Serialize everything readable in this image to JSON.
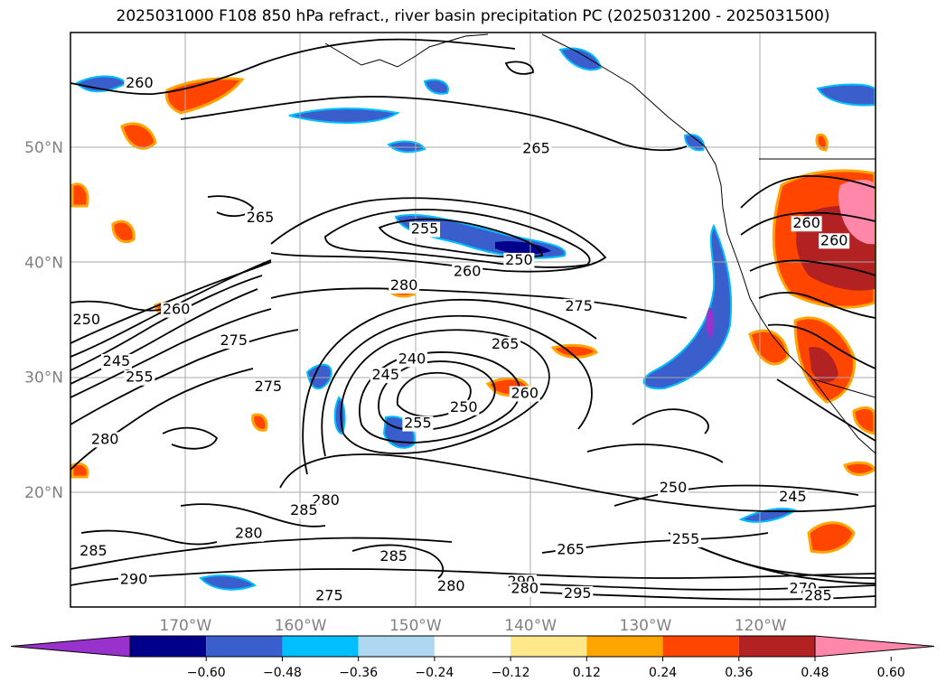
{
  "title": "2025031000 F108 850 hPa refract., river basin precipitation PC (2025031200 - 2025031500)",
  "map": {
    "lon_range": [
      -180,
      -110
    ],
    "lat_range": [
      10,
      60
    ],
    "grid_lines": true,
    "lat_ticks": [
      {
        "lat": 50,
        "label": "50°N"
      },
      {
        "lat": 40,
        "label": "40°N"
      },
      {
        "lat": 30,
        "label": "30°N"
      },
      {
        "lat": 20,
        "label": "20°N"
      }
    ],
    "lon_ticks": [
      {
        "lon": -170,
        "label": "170°W"
      },
      {
        "lon": -160,
        "label": "160°W"
      },
      {
        "lon": -150,
        "label": "150°W"
      },
      {
        "lon": -140,
        "label": "140°W"
      },
      {
        "lon": -130,
        "label": "130°W"
      },
      {
        "lon": -120,
        "label": "120°W"
      }
    ],
    "contour_labels": [
      {
        "text": "260",
        "lon": -174.0,
        "lat": 55.2
      },
      {
        "text": "265",
        "lon": -139.5,
        "lat": 49.5
      },
      {
        "text": "265",
        "lon": -163.5,
        "lat": 43.5
      },
      {
        "text": "255",
        "lon": -149.2,
        "lat": 42.5
      },
      {
        "text": "250",
        "lon": -141.0,
        "lat": 39.8
      },
      {
        "text": "260",
        "lon": -145.5,
        "lat": 38.8
      },
      {
        "text": "280",
        "lon": -151.0,
        "lat": 37.6
      },
      {
        "text": "260",
        "lon": -170.8,
        "lat": 35.5
      },
      {
        "text": "250",
        "lon": -178.6,
        "lat": 34.6
      },
      {
        "text": "275",
        "lon": -165.8,
        "lat": 32.8
      },
      {
        "text": "275",
        "lon": -135.8,
        "lat": 35.8
      },
      {
        "text": "265",
        "lon": -142.2,
        "lat": 32.5
      },
      {
        "text": "240",
        "lon": -150.3,
        "lat": 31.2
      },
      {
        "text": "245",
        "lon": -152.6,
        "lat": 29.8
      },
      {
        "text": "245",
        "lon": -176.0,
        "lat": 31.0
      },
      {
        "text": "255",
        "lon": -174.0,
        "lat": 29.6
      },
      {
        "text": "275",
        "lon": -162.8,
        "lat": 28.8
      },
      {
        "text": "260",
        "lon": -140.5,
        "lat": 28.2
      },
      {
        "text": "250",
        "lon": -145.8,
        "lat": 27.0
      },
      {
        "text": "255",
        "lon": -149.8,
        "lat": 25.6
      },
      {
        "text": "280",
        "lon": -177.0,
        "lat": 24.2
      },
      {
        "text": "250",
        "lon": -127.6,
        "lat": 20.0
      },
      {
        "text": "245",
        "lon": -117.2,
        "lat": 19.2
      },
      {
        "text": "280",
        "lon": -157.8,
        "lat": 18.9
      },
      {
        "text": "285",
        "lon": -159.7,
        "lat": 18.0
      },
      {
        "text": "280",
        "lon": -164.5,
        "lat": 16.0
      },
      {
        "text": "285",
        "lon": -178.0,
        "lat": 14.5
      },
      {
        "text": "265",
        "lon": -136.5,
        "lat": 14.6
      },
      {
        "text": "255",
        "lon": -126.5,
        "lat": 15.5
      },
      {
        "text": "285",
        "lon": -151.9,
        "lat": 14.0
      },
      {
        "text": "290",
        "lon": -174.5,
        "lat": 12.0
      },
      {
        "text": "290",
        "lon": -140.8,
        "lat": 11.8
      },
      {
        "text": "280",
        "lon": -146.9,
        "lat": 11.4
      },
      {
        "text": "280",
        "lon": -140.5,
        "lat": 11.2
      },
      {
        "text": "295",
        "lon": -135.9,
        "lat": 10.8
      },
      {
        "text": "270",
        "lon": -116.3,
        "lat": 11.2
      },
      {
        "text": "285",
        "lon": -115.0,
        "lat": 10.6
      },
      {
        "text": "275",
        "lon": -157.5,
        "lat": 10.6
      },
      {
        "text": "260",
        "lon": -116.0,
        "lat": 43.0
      },
      {
        "text": "260",
        "lon": -113.6,
        "lat": 41.5
      }
    ]
  },
  "colorbar": {
    "ticks": [
      "−0.60",
      "−0.48",
      "−0.36",
      "−0.24",
      "−0.12",
      "0.12",
      "0.24",
      "0.36",
      "0.48",
      "0.60"
    ],
    "colors": [
      "#9932cc",
      "#00008b",
      "#3a5fcd",
      "#00bfff",
      "#add8f0",
      "#ffffff",
      "#ffe88a",
      "#ffa500",
      "#ff4500",
      "#b22222",
      "#ff88aa"
    ]
  }
}
